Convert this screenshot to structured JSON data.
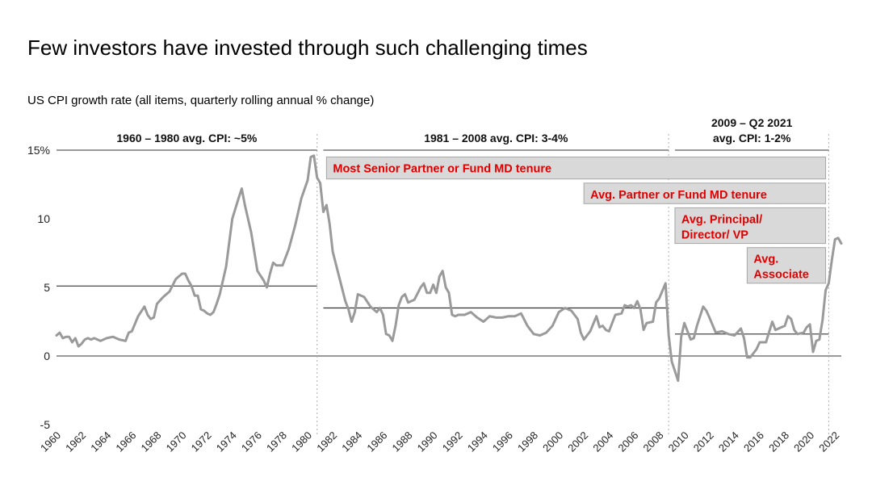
{
  "title": "Few investors have invested through such challenging times",
  "subtitle": "US CPI growth rate (all items, quarterly rolling annual % change)",
  "colors": {
    "series": "#9a9a9a",
    "reference_line": "#333333",
    "box_fill": "#d9d9d9",
    "box_stroke": "#a6a6a6",
    "box_text": "#e00000",
    "divider": "#b0b0b0"
  },
  "chart_data": {
    "type": "line",
    "xlim": [
      1960,
      2022.5
    ],
    "ylim": [
      -5,
      15
    ],
    "yticks": [
      {
        "value": 15,
        "label": "15%"
      },
      {
        "value": 10,
        "label": "10"
      },
      {
        "value": 5,
        "label": "5"
      },
      {
        "value": 0,
        "label": "0"
      },
      {
        "value": -5,
        "label": "-5"
      }
    ],
    "xticks": [
      "1960",
      "1962",
      "1964",
      "1966",
      "1968",
      "1970",
      "1972",
      "1974",
      "1976",
      "1978",
      "1980",
      "1982",
      "1984",
      "1986",
      "1988",
      "1990",
      "1992",
      "1994",
      "1996",
      "1998",
      "2000",
      "2002",
      "2004",
      "2006",
      "2008",
      "2010",
      "2012",
      "2014",
      "2016",
      "2018",
      "2020",
      "2022"
    ],
    "series": [
      {
        "points": [
          [
            1960.0,
            1.5
          ],
          [
            1960.25,
            1.7
          ],
          [
            1960.5,
            1.3
          ],
          [
            1960.75,
            1.4
          ],
          [
            1961.0,
            1.4
          ],
          [
            1961.25,
            1.0
          ],
          [
            1961.5,
            1.3
          ],
          [
            1961.75,
            0.7
          ],
          [
            1962.0,
            0.9
          ],
          [
            1962.25,
            1.2
          ],
          [
            1962.5,
            1.3
          ],
          [
            1962.75,
            1.2
          ],
          [
            1963.0,
            1.3
          ],
          [
            1963.5,
            1.1
          ],
          [
            1964.0,
            1.3
          ],
          [
            1964.5,
            1.4
          ],
          [
            1965.0,
            1.2
          ],
          [
            1965.5,
            1.1
          ],
          [
            1965.75,
            1.7
          ],
          [
            1966.0,
            1.8
          ],
          [
            1966.5,
            2.9
          ],
          [
            1967.0,
            3.6
          ],
          [
            1967.25,
            3.0
          ],
          [
            1967.5,
            2.7
          ],
          [
            1967.75,
            2.8
          ],
          [
            1968.0,
            3.8
          ],
          [
            1968.5,
            4.3
          ],
          [
            1969.0,
            4.7
          ],
          [
            1969.5,
            5.6
          ],
          [
            1970.0,
            6.0
          ],
          [
            1970.25,
            6.0
          ],
          [
            1970.5,
            5.5
          ],
          [
            1970.75,
            5.1
          ],
          [
            1971.0,
            4.4
          ],
          [
            1971.25,
            4.4
          ],
          [
            1971.5,
            3.4
          ],
          [
            1971.75,
            3.3
          ],
          [
            1972.0,
            3.1
          ],
          [
            1972.25,
            3.0
          ],
          [
            1972.5,
            3.2
          ],
          [
            1972.75,
            3.8
          ],
          [
            1973.0,
            4.5
          ],
          [
            1973.5,
            6.5
          ],
          [
            1974.0,
            10.0
          ],
          [
            1974.5,
            11.5
          ],
          [
            1974.75,
            12.2
          ],
          [
            1975.0,
            11.0
          ],
          [
            1975.5,
            9.0
          ],
          [
            1976.0,
            6.2
          ],
          [
            1976.5,
            5.5
          ],
          [
            1976.75,
            5.0
          ],
          [
            1977.0,
            6.0
          ],
          [
            1977.25,
            6.8
          ],
          [
            1977.5,
            6.6
          ],
          [
            1978.0,
            6.6
          ],
          [
            1978.5,
            7.8
          ],
          [
            1979.0,
            9.5
          ],
          [
            1979.5,
            11.5
          ],
          [
            1980.0,
            12.8
          ],
          [
            1980.25,
            14.5
          ],
          [
            1980.5,
            14.6
          ],
          [
            1980.75,
            13.0
          ],
          [
            1981.0,
            12.6
          ],
          [
            1981.25,
            10.5
          ],
          [
            1981.5,
            11.0
          ],
          [
            1981.75,
            9.6
          ],
          [
            1982.0,
            7.6
          ],
          [
            1982.5,
            5.8
          ],
          [
            1983.0,
            4.0
          ],
          [
            1983.25,
            3.4
          ],
          [
            1983.5,
            2.5
          ],
          [
            1983.75,
            3.2
          ],
          [
            1984.0,
            4.5
          ],
          [
            1984.5,
            4.3
          ],
          [
            1985.0,
            3.6
          ],
          [
            1985.5,
            3.2
          ],
          [
            1985.75,
            3.5
          ],
          [
            1986.0,
            3.0
          ],
          [
            1986.25,
            1.6
          ],
          [
            1986.5,
            1.5
          ],
          [
            1986.75,
            1.1
          ],
          [
            1987.0,
            2.2
          ],
          [
            1987.25,
            3.7
          ],
          [
            1987.5,
            4.3
          ],
          [
            1987.75,
            4.5
          ],
          [
            1988.0,
            3.9
          ],
          [
            1988.5,
            4.1
          ],
          [
            1989.0,
            5.0
          ],
          [
            1989.25,
            5.3
          ],
          [
            1989.5,
            4.6
          ],
          [
            1989.75,
            4.6
          ],
          [
            1990.0,
            5.2
          ],
          [
            1990.25,
            4.6
          ],
          [
            1990.5,
            5.8
          ],
          [
            1990.75,
            6.2
          ],
          [
            1991.0,
            5.0
          ],
          [
            1991.25,
            4.6
          ],
          [
            1991.5,
            3.0
          ],
          [
            1991.75,
            2.9
          ],
          [
            1992.0,
            3.0
          ],
          [
            1992.5,
            3.0
          ],
          [
            1993.0,
            3.2
          ],
          [
            1993.5,
            2.8
          ],
          [
            1994.0,
            2.5
          ],
          [
            1994.5,
            2.9
          ],
          [
            1995.0,
            2.8
          ],
          [
            1995.5,
            2.8
          ],
          [
            1996.0,
            2.9
          ],
          [
            1996.5,
            2.9
          ],
          [
            1997.0,
            3.1
          ],
          [
            1997.5,
            2.2
          ],
          [
            1998.0,
            1.6
          ],
          [
            1998.5,
            1.5
          ],
          [
            1999.0,
            1.7
          ],
          [
            1999.5,
            2.2
          ],
          [
            2000.0,
            3.2
          ],
          [
            2000.5,
            3.5
          ],
          [
            2001.0,
            3.3
          ],
          [
            2001.5,
            2.7
          ],
          [
            2001.75,
            1.7
          ],
          [
            2002.0,
            1.2
          ],
          [
            2002.5,
            1.8
          ],
          [
            2003.0,
            2.9
          ],
          [
            2003.25,
            2.1
          ],
          [
            2003.5,
            2.2
          ],
          [
            2003.75,
            1.9
          ],
          [
            2004.0,
            1.8
          ],
          [
            2004.5,
            3.0
          ],
          [
            2005.0,
            3.1
          ],
          [
            2005.25,
            3.7
          ],
          [
            2005.5,
            3.6
          ],
          [
            2005.75,
            3.7
          ],
          [
            2006.0,
            3.5
          ],
          [
            2006.25,
            4.0
          ],
          [
            2006.5,
            3.4
          ],
          [
            2006.75,
            1.9
          ],
          [
            2007.0,
            2.4
          ],
          [
            2007.5,
            2.5
          ],
          [
            2007.75,
            3.9
          ],
          [
            2008.0,
            4.2
          ],
          [
            2008.5,
            5.3
          ],
          [
            2008.75,
            1.5
          ],
          [
            2009.0,
            -0.4
          ],
          [
            2009.25,
            -1.1
          ],
          [
            2009.5,
            -1.8
          ],
          [
            2009.75,
            1.4
          ],
          [
            2010.0,
            2.4
          ],
          [
            2010.5,
            1.2
          ],
          [
            2010.75,
            1.3
          ],
          [
            2011.0,
            2.2
          ],
          [
            2011.5,
            3.6
          ],
          [
            2011.75,
            3.3
          ],
          [
            2012.0,
            2.8
          ],
          [
            2012.5,
            1.7
          ],
          [
            2013.0,
            1.8
          ],
          [
            2013.5,
            1.6
          ],
          [
            2014.0,
            1.5
          ],
          [
            2014.5,
            2.0
          ],
          [
            2014.75,
            1.3
          ],
          [
            2015.0,
            -0.1
          ],
          [
            2015.25,
            -0.1
          ],
          [
            2015.5,
            0.2
          ],
          [
            2015.75,
            0.5
          ],
          [
            2016.0,
            1.0
          ],
          [
            2016.5,
            1.0
          ],
          [
            2017.0,
            2.5
          ],
          [
            2017.25,
            1.9
          ],
          [
            2017.75,
            2.1
          ],
          [
            2018.0,
            2.2
          ],
          [
            2018.25,
            2.9
          ],
          [
            2018.5,
            2.7
          ],
          [
            2018.75,
            1.9
          ],
          [
            2019.0,
            1.6
          ],
          [
            2019.5,
            1.7
          ],
          [
            2019.75,
            2.1
          ],
          [
            2020.0,
            2.3
          ],
          [
            2020.25,
            0.3
          ],
          [
            2020.5,
            1.1
          ],
          [
            2020.75,
            1.2
          ],
          [
            2021.0,
            2.6
          ],
          [
            2021.25,
            4.8
          ],
          [
            2021.5,
            5.3
          ],
          [
            2021.75,
            7.0
          ],
          [
            2022.0,
            8.5
          ],
          [
            2022.25,
            8.6
          ],
          [
            2022.5,
            8.2
          ]
        ]
      }
    ],
    "reference_lines": [
      {
        "x0": 1960,
        "x1": 1980.75,
        "y": 5.1
      },
      {
        "x0": 1981.25,
        "x1": 2008.75,
        "y": 3.5
      },
      {
        "x0": 2009.25,
        "x1": 2021.5,
        "y": 1.6
      }
    ],
    "top_lines": [
      {
        "x0": 1960,
        "x1": 1980.75
      },
      {
        "x0": 1981.25,
        "x1": 2008.75
      },
      {
        "x0": 2009.25,
        "x1": 2021.5
      }
    ],
    "dividers": [
      1980.75,
      2008.75,
      2021.5
    ],
    "eras": [
      {
        "lines": [
          "1960 – 1980 avg. CPI: ~5%"
        ],
        "x0": 1960,
        "x1": 1980.75
      },
      {
        "lines": [
          "1981 – 2008 avg. CPI: 3-4%"
        ],
        "x0": 1981.25,
        "x1": 2008.75
      },
      {
        "lines": [
          "2009 – Q2 2021",
          "avg. CPI: 1-2%"
        ],
        "x0": 2009.25,
        "x1": 2021.5
      }
    ],
    "annotations": [
      {
        "lines": [
          "Most Senior Partner or Fund MD tenure"
        ],
        "x0": 1981.5,
        "x1": 2021.25,
        "ytop": 14.5,
        "ybot": 12.9
      },
      {
        "lines": [
          "Avg. Partner or Fund MD tenure"
        ],
        "x0": 2002.0,
        "x1": 2021.25,
        "ytop": 12.6,
        "ybot": 11.1
      },
      {
        "lines": [
          "Avg. Principal/",
          "Director/ VP"
        ],
        "x0": 2009.25,
        "x1": 2021.25,
        "ytop": 10.8,
        "ybot": 8.2
      },
      {
        "lines": [
          "Avg.",
          "Associate"
        ],
        "x0": 2015.0,
        "x1": 2021.25,
        "ytop": 7.9,
        "ybot": 5.3
      }
    ]
  }
}
